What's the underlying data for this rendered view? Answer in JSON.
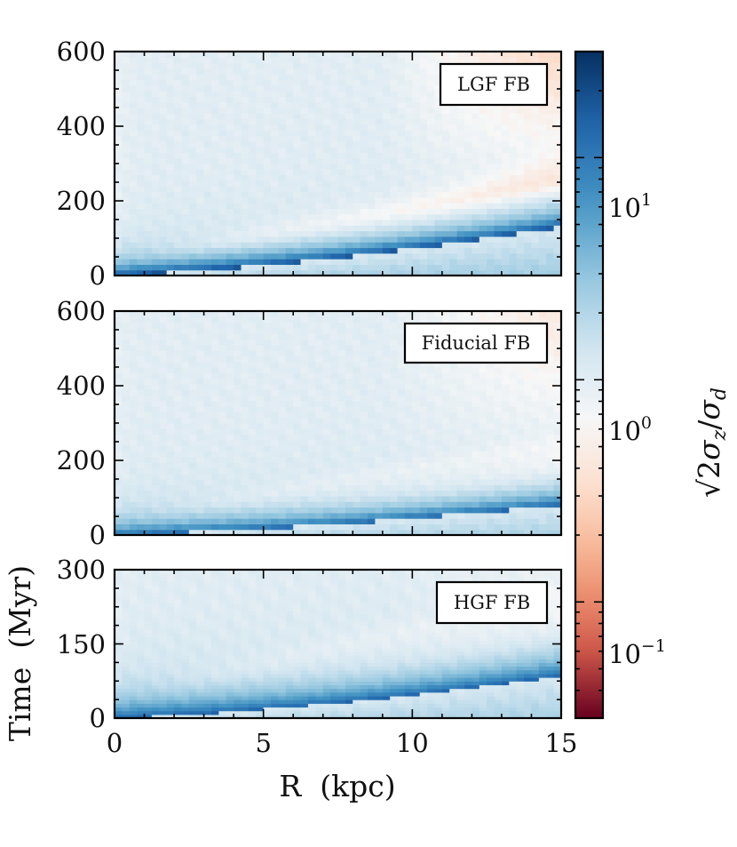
{
  "chart_data": {
    "type": "heatmap",
    "colormap": "RdBu",
    "shared_xaxis": {
      "xlabel": "R  (kpc)",
      "xlim": [
        0,
        15
      ],
      "ticks": [
        0,
        5,
        10,
        15
      ],
      "tick_labels": [
        "0",
        "5",
        "10",
        "15"
      ]
    },
    "ylabel": "Time  (Myr)",
    "colorbar": {
      "label": "√2σz/σd",
      "label_parts": {
        "sqrt": "√",
        "two": "2",
        "sigma": "σ",
        "z": "z",
        "slash": "/",
        "d": "d"
      },
      "scale": "log",
      "range": [
        0.03,
        30
      ],
      "ticks": [
        0.1,
        1,
        10
      ],
      "tick_labels": [
        {
          "base": "10",
          "exp": "−1"
        },
        {
          "base": "10",
          "exp": "0"
        },
        {
          "base": "10",
          "exp": "1"
        }
      ]
    },
    "panels": [
      {
        "label": "LGF FB",
        "ylim": [
          0,
          600
        ],
        "yticks": [
          0,
          200,
          400,
          600
        ],
        "ytick_labels": [
          "0",
          "200",
          "400",
          "600"
        ],
        "front_slope": 4.0,
        "blue_strength": 1.0,
        "red_strength": 1.0
      },
      {
        "label": "Fiducial FB",
        "ylim": [
          0,
          600
        ],
        "yticks": [
          0,
          200,
          400,
          600
        ],
        "ytick_labels": [
          "0",
          "200",
          "400",
          "600"
        ],
        "front_slope": 2.5,
        "blue_strength": 0.85,
        "red_strength": 0.6
      },
      {
        "label": "HGF FB",
        "ylim": [
          0,
          300
        ],
        "yticks": [
          0,
          150,
          300
        ],
        "ytick_labels": [
          "0",
          "150",
          "300"
        ],
        "front_slope": 2.6,
        "blue_strength": 0.9,
        "red_strength": 0.55
      }
    ]
  },
  "colors": {
    "deep_red": "#67001f",
    "red": "#d6604d",
    "light_red": "#f4a582",
    "pale_red": "#fddbc7",
    "white": "#f7f7f7",
    "pale_blue": "#d1e5f0",
    "light_blue": "#92c5de",
    "blue": "#4393c3",
    "dark_blue": "#2166ac",
    "deep_blue": "#053061"
  }
}
